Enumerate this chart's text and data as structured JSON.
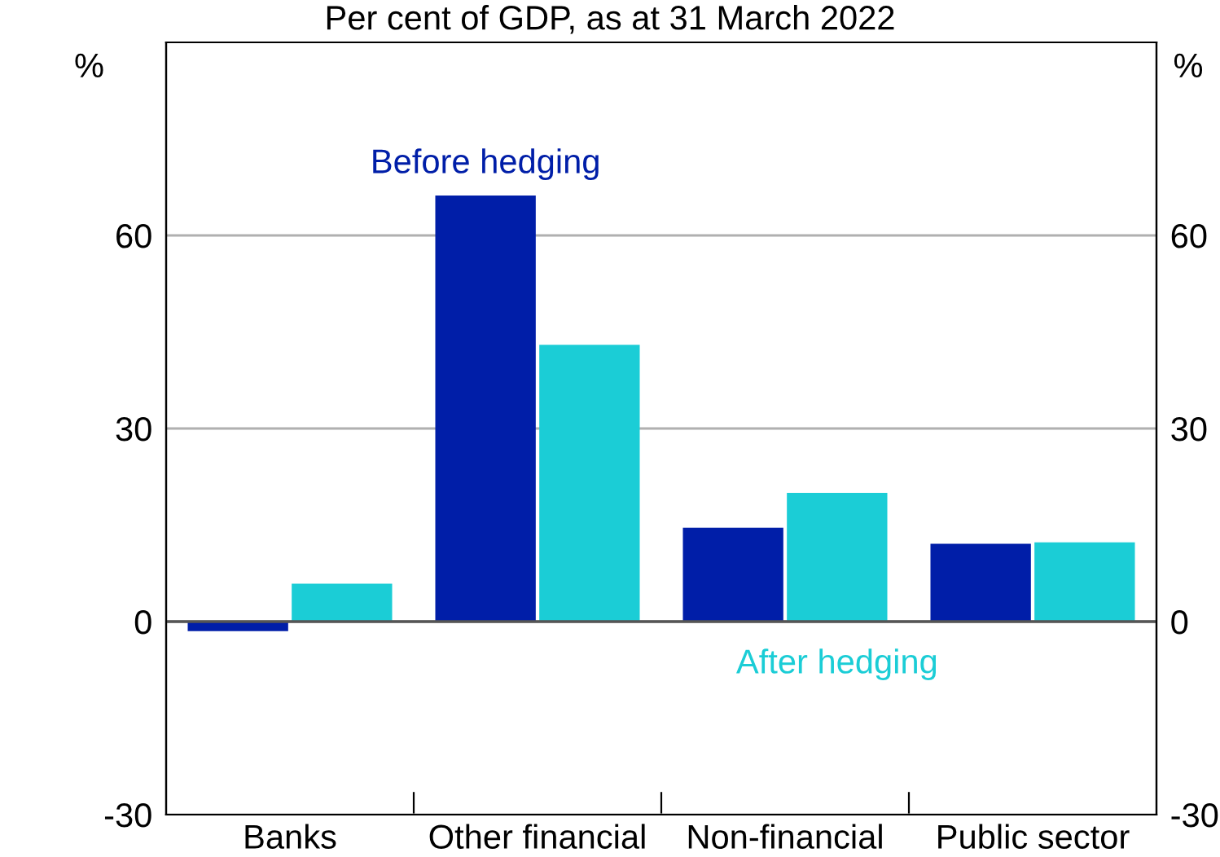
{
  "chart_data": {
    "type": "bar",
    "subtitle": "Per cent of GDP, as at 31 March 2022",
    "ylabel": "%",
    "y2label": "%",
    "categories": [
      "Banks",
      "Other financial",
      "Non-financial",
      "Public sector"
    ],
    "series": [
      {
        "name": "Before hedging",
        "color": "#001ea8",
        "values": [
          -1.5,
          66.2,
          14.6,
          12.1
        ]
      },
      {
        "name": "After hedging",
        "color": "#1bcdd6",
        "values": [
          5.9,
          43,
          20,
          12.3
        ]
      }
    ],
    "ylim": [
      -30,
      90
    ],
    "yticks": [
      -30,
      0,
      30,
      60
    ],
    "y2lim": [
      -30,
      90
    ],
    "y2ticks": [
      -30,
      0,
      30,
      60
    ],
    "grid": "y",
    "legend": false,
    "ref_lines": [
      {
        "axis": "y",
        "value": 0,
        "color": "#555555"
      }
    ]
  }
}
